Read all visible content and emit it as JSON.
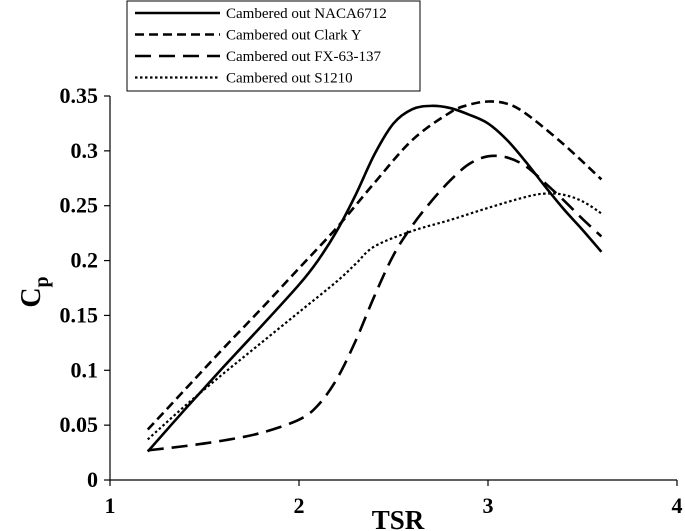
{
  "chart_data": {
    "type": "line",
    "title": "",
    "xlabel": "TSR",
    "ylabel_main": "C",
    "ylabel_sub": "p",
    "xlim": [
      1,
      4
    ],
    "ylim": [
      0,
      0.35
    ],
    "xticks": [
      "1",
      "2",
      "3",
      "4"
    ],
    "yticks": [
      "0",
      "0.05",
      "0.1",
      "0.15",
      "0.2",
      "0.25",
      "0.3",
      "0.35"
    ],
    "grid": false,
    "legend_position": "top-left",
    "series": [
      {
        "name": "Cambered out NACA6712",
        "style": "solid",
        "x": [
          1.2,
          1.4,
          1.6,
          1.8,
          2.0,
          2.1,
          2.2,
          2.3,
          2.4,
          2.5,
          2.6,
          2.7,
          2.8,
          2.9,
          3.0,
          3.1,
          3.2,
          3.3,
          3.4,
          3.5,
          3.6
        ],
        "y": [
          0.026,
          0.065,
          0.103,
          0.14,
          0.178,
          0.2,
          0.227,
          0.26,
          0.297,
          0.325,
          0.338,
          0.341,
          0.339,
          0.333,
          0.325,
          0.31,
          0.29,
          0.268,
          0.247,
          0.228,
          0.208
        ]
      },
      {
        "name": "Cambered out Clark Y",
        "style": "dash",
        "x": [
          1.2,
          1.4,
          1.6,
          1.8,
          2.0,
          2.2,
          2.4,
          2.6,
          2.8,
          2.9,
          3.0,
          3.1,
          3.2,
          3.4,
          3.6
        ],
        "y": [
          0.046,
          0.083,
          0.12,
          0.156,
          0.193,
          0.23,
          0.271,
          0.31,
          0.335,
          0.342,
          0.345,
          0.343,
          0.334,
          0.306,
          0.274
        ]
      },
      {
        "name": "Cambered out FX-63-137",
        "style": "longdash",
        "x": [
          1.2,
          1.4,
          1.6,
          1.8,
          2.0,
          2.1,
          2.2,
          2.3,
          2.4,
          2.5,
          2.6,
          2.7,
          2.8,
          2.9,
          3.0,
          3.1,
          3.2,
          3.3,
          3.4,
          3.5,
          3.6
        ],
        "y": [
          0.027,
          0.031,
          0.036,
          0.043,
          0.055,
          0.068,
          0.092,
          0.127,
          0.168,
          0.205,
          0.232,
          0.254,
          0.273,
          0.288,
          0.295,
          0.294,
          0.286,
          0.271,
          0.255,
          0.238,
          0.222
        ]
      },
      {
        "name": "Cambered out S1210",
        "style": "dot",
        "x": [
          1.2,
          1.4,
          1.6,
          1.8,
          2.0,
          2.2,
          2.3,
          2.4,
          2.6,
          2.8,
          3.0,
          3.2,
          3.3,
          3.4,
          3.5,
          3.6
        ],
        "y": [
          0.037,
          0.068,
          0.097,
          0.125,
          0.153,
          0.181,
          0.197,
          0.213,
          0.227,
          0.237,
          0.248,
          0.258,
          0.261,
          0.26,
          0.254,
          0.243
        ]
      }
    ]
  }
}
